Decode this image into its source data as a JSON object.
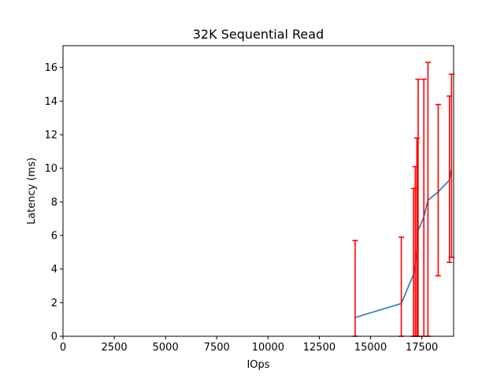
{
  "chart_data": {
    "type": "line",
    "title": "32K  Sequential Read",
    "xlabel": "IOps",
    "ylabel": "Latency (ms)",
    "xlim": [
      0,
      19050
    ],
    "ylim": [
      0,
      17.3
    ],
    "x_ticks": [
      0,
      2500,
      5000,
      7500,
      10000,
      12500,
      15000,
      17500
    ],
    "x_tick_labels": [
      "0",
      "2500",
      "5000",
      "7500",
      "10000",
      "12500",
      "15000",
      "17500"
    ],
    "y_ticks": [
      0,
      2,
      4,
      6,
      8,
      10,
      12,
      14,
      16
    ],
    "y_tick_labels": [
      "0",
      "2",
      "4",
      "6",
      "8",
      "10",
      "12",
      "14",
      "16"
    ],
    "grid": false,
    "series": [
      {
        "line_color": "#1f77b4",
        "error_color": "#ff0000",
        "points": [
          {
            "x": 14250,
            "y": 1.12,
            "lo": 0.0,
            "hi": 5.7
          },
          {
            "x": 16500,
            "y": 1.95,
            "lo": 0.0,
            "hi": 5.9
          },
          {
            "x": 17100,
            "y": 3.7,
            "lo": 0.0,
            "hi": 8.8
          },
          {
            "x": 17180,
            "y": 4.3,
            "lo": 0.0,
            "hi": 10.1
          },
          {
            "x": 17260,
            "y": 5.2,
            "lo": 0.0,
            "hi": 11.8
          },
          {
            "x": 17320,
            "y": 6.3,
            "lo": 0.0,
            "hi": 15.3
          },
          {
            "x": 17600,
            "y": 7.1,
            "lo": 0.0,
            "hi": 15.3
          },
          {
            "x": 17800,
            "y": 8.1,
            "lo": 0.0,
            "hi": 16.3
          },
          {
            "x": 18300,
            "y": 8.6,
            "lo": 3.6,
            "hi": 13.8
          },
          {
            "x": 18850,
            "y": 9.3,
            "lo": 4.4,
            "hi": 14.3
          },
          {
            "x": 18950,
            "y": 10.0,
            "lo": 4.7,
            "hi": 15.6
          }
        ]
      }
    ]
  }
}
